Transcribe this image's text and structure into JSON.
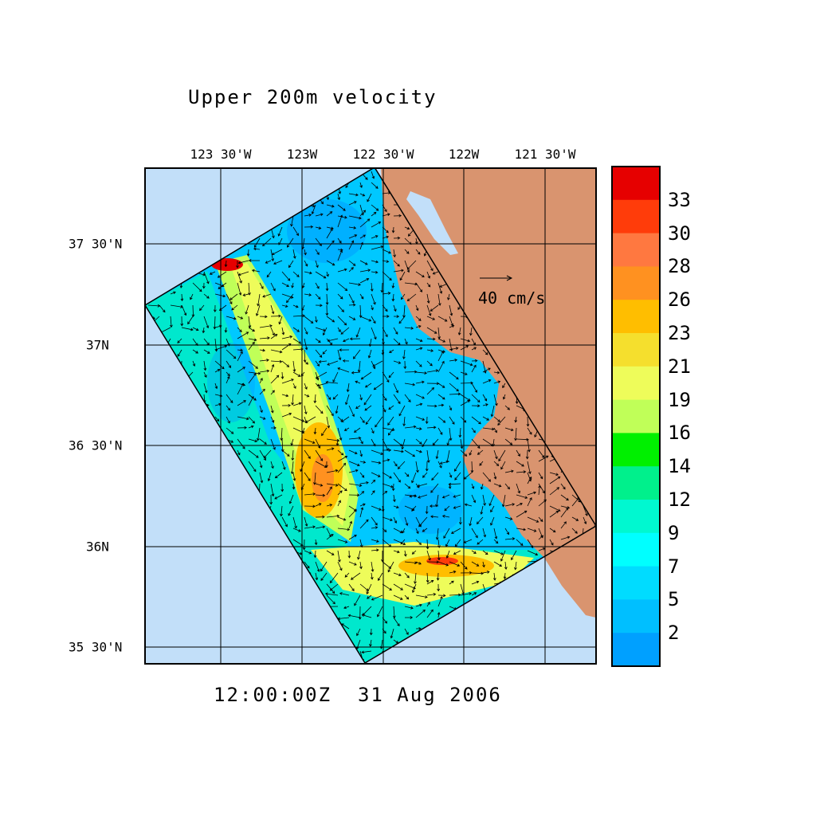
{
  "title": "Upper 200m velocity",
  "timestamp": "12:00:00Z  31 Aug 2006",
  "lon_labels": [
    "123 30'W",
    "123W",
    "122 30'W",
    "122W",
    "121 30'W"
  ],
  "lat_labels": [
    "37 30'N",
    "37N",
    "36 30'N",
    "36N",
    "35 30'N"
  ],
  "reference_vector": {
    "label": "40 cm/s",
    "value_cm_s": 40
  },
  "colors": {
    "ocean_outside": "#c2dff9",
    "land": "#d9946f",
    "frame": "#000000"
  },
  "colorbar": {
    "labels": [
      "33",
      "30",
      "28",
      "26",
      "23",
      "21",
      "19",
      "16",
      "14",
      "12",
      "9",
      "7",
      "5",
      "2"
    ],
    "colors": [
      "#e60000",
      "#ff3c0a",
      "#ff7840",
      "#ff9120",
      "#ffbe00",
      "#f5df2d",
      "#eefc5a",
      "#c0ff58",
      "#00f000",
      "#00f08c",
      "#00f8d0",
      "#00ffff",
      "#00dcff",
      "#00bfff",
      "#00a0ff"
    ]
  }
}
